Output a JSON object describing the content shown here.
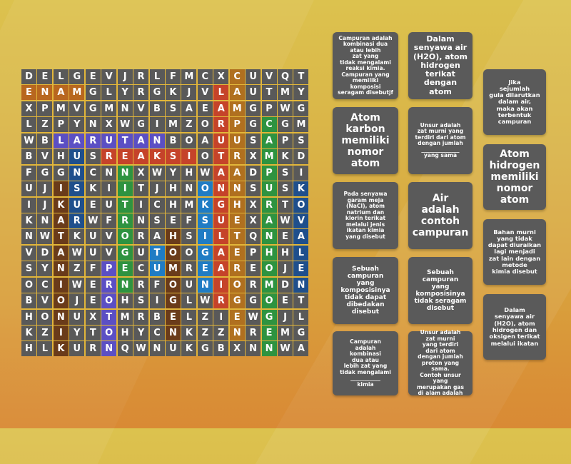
{
  "game": {
    "type": "wordsearch",
    "grid": [
      [
        "D",
        "E",
        "L",
        "G",
        "E",
        "V",
        "J",
        "R",
        "L",
        "F",
        "M",
        "C",
        "X",
        "C",
        "U",
        "V",
        "Q",
        "T"
      ],
      [
        "E",
        "N",
        "A",
        "M",
        "G",
        "L",
        "Y",
        "R",
        "G",
        "K",
        "J",
        "V",
        "L",
        "A",
        "U",
        "T",
        "M",
        "Y"
      ],
      [
        "X",
        "P",
        "M",
        "V",
        "G",
        "M",
        "N",
        "V",
        "B",
        "S",
        "A",
        "E",
        "A",
        "M",
        "G",
        "P",
        "W",
        "G"
      ],
      [
        "L",
        "Z",
        "P",
        "Y",
        "N",
        "X",
        "W",
        "G",
        "I",
        "M",
        "Z",
        "O",
        "R",
        "P",
        "G",
        "C",
        "G",
        "M"
      ],
      [
        "W",
        "B",
        "L",
        "A",
        "R",
        "U",
        "T",
        "A",
        "N",
        "B",
        "O",
        "A",
        "U",
        "U",
        "S",
        "A",
        "P",
        "S"
      ],
      [
        "B",
        "V",
        "H",
        "U",
        "S",
        "R",
        "E",
        "A",
        "K",
        "S",
        "I",
        "O",
        "T",
        "R",
        "X",
        "M",
        "K",
        "D"
      ],
      [
        "F",
        "G",
        "G",
        "N",
        "C",
        "N",
        "N",
        "X",
        "W",
        "Y",
        "H",
        "W",
        "A",
        "A",
        "D",
        "P",
        "S",
        "I"
      ],
      [
        "U",
        "J",
        "I",
        "S",
        "K",
        "I",
        "I",
        "T",
        "J",
        "H",
        "N",
        "O",
        "N",
        "N",
        "S",
        "U",
        "S",
        "K"
      ],
      [
        "I",
        "J",
        "K",
        "U",
        "E",
        "U",
        "T",
        "I",
        "C",
        "H",
        "M",
        "K",
        "G",
        "H",
        "X",
        "R",
        "T",
        "O"
      ],
      [
        "K",
        "N",
        "A",
        "R",
        "W",
        "F",
        "R",
        "N",
        "S",
        "E",
        "F",
        "S",
        "U",
        "E",
        "X",
        "A",
        "W",
        "V"
      ],
      [
        "N",
        "W",
        "T",
        "K",
        "U",
        "V",
        "O",
        "R",
        "A",
        "H",
        "S",
        "I",
        "L",
        "T",
        "Q",
        "N",
        "E",
        "A"
      ],
      [
        "V",
        "D",
        "A",
        "W",
        "U",
        "V",
        "G",
        "U",
        "T",
        "O",
        "O",
        "G",
        "A",
        "E",
        "P",
        "H",
        "H",
        "L"
      ],
      [
        "S",
        "Y",
        "N",
        "Z",
        "F",
        "P",
        "E",
        "C",
        "U",
        "M",
        "R",
        "E",
        "A",
        "R",
        "E",
        "O",
        "J",
        "E"
      ],
      [
        "O",
        "C",
        "I",
        "W",
        "E",
        "R",
        "N",
        "R",
        "F",
        "O",
        "U",
        "N",
        "I",
        "O",
        "R",
        "M",
        "D",
        "N"
      ],
      [
        "B",
        "V",
        "O",
        "J",
        "E",
        "O",
        "H",
        "S",
        "I",
        "G",
        "L",
        "W",
        "R",
        "G",
        "G",
        "O",
        "E",
        "T"
      ],
      [
        "H",
        "O",
        "N",
        "U",
        "X",
        "T",
        "M",
        "R",
        "B",
        "E",
        "L",
        "Z",
        "I",
        "E",
        "W",
        "G",
        "J",
        "L"
      ],
      [
        "K",
        "Z",
        "I",
        "Y",
        "T",
        "O",
        "H",
        "Y",
        "C",
        "N",
        "K",
        "Z",
        "Z",
        "N",
        "R",
        "E",
        "M",
        "G"
      ],
      [
        "H",
        "L",
        "K",
        "U",
        "R",
        "N",
        "Q",
        "W",
        "N",
        "U",
        "K",
        "G",
        "B",
        "X",
        "N",
        "N",
        "W",
        "A"
      ]
    ],
    "found_words": [
      {
        "word": "ENAM",
        "color": "#b8671f"
      },
      {
        "word": "LARUTAN",
        "color": "#5b4fc4"
      },
      {
        "word": "UNSUR",
        "color": "#1f4f8c"
      },
      {
        "word": "REAKSI",
        "color": "#c5432a"
      },
      {
        "word": "CAMPURAN",
        "color": "#2e9340"
      },
      {
        "word": "IKATAN IONIK",
        "color": "#6a3b1a"
      },
      {
        "word": "NITROGEN",
        "color": "#2e9340"
      },
      {
        "word": "PROTON",
        "color": "#5b4fc4"
      },
      {
        "word": "OKSIGEN",
        "color": "#1f7cc4"
      },
      {
        "word": "KOVALEN",
        "color": "#1f4f8c"
      },
      {
        "word": "HOMOGEN",
        "color": "#2e9340"
      },
      {
        "word": "HETEROGEN",
        "color": "#b0701f"
      }
    ]
  },
  "clues": [
    {
      "id": "c1",
      "text": "Campuran adalah\nkombinasi dua\natau lebih\nzat yang\ntidak mengalami\nreaksi kimia.\nCampuran yang\nmemiliki komposisi\nseragam disebutjf"
    },
    {
      "id": "c2",
      "text": "Dalam\nsenyawa air\n(H2O), atom\nhidrogen\nterikat\ndengan atom"
    },
    {
      "id": "c3",
      "text": "Jika\nsejumlah\ngula dilarutkan\ndalam air,\nmaka akan\nterbentuk\ncampuran"
    },
    {
      "id": "c4",
      "text": "Atom\nkarbon\nmemiliki\nnomor\natom"
    },
    {
      "id": "c5",
      "text": "Unsur adalah\nzat murni yang\nterdiri dari atom\ndengan jumlah\n______________\nyang sama"
    },
    {
      "id": "c6",
      "text": "Atom\nhidrogen\nmemiliki\nnomor\natom"
    },
    {
      "id": "c7",
      "text": "Pada senyawa\ngaram meja\n(NaCl), atom\nnatrium dan\nklorin terikat\nmelalui jenis\nikatan kimia\nyang disebut"
    },
    {
      "id": "c8",
      "text": "Air\nadalah\ncontoh\ncampuran"
    },
    {
      "id": "c9",
      "text": "Bahan murni\nyang tidak\ndapat diuraikan\nlagi menjadi\nzat lain dengan\nmetode\nkimia disebut"
    },
    {
      "id": "c10",
      "text": "Sebuah\ncampuran\nyang\nkomposisinya\ntidak dapat\ndibedakan\ndisebut"
    },
    {
      "id": "c11",
      "text": "Sebuah\ncampuran\nyang\nkomposisinya\ntidak seragam\ndisebut"
    },
    {
      "id": "c12",
      "text": "Dalam\nsenyawa air\n(H2O), atom\nhidrogen dan\noksigen terikat\nmelalui ikatan"
    },
    {
      "id": "c13",
      "text": "Campuran\nadalah\nkombinasi\ndua atau\nlebih zat yang\ntidak mengalami\n___________\nkimia"
    },
    {
      "id": "c14",
      "text": "Unsur adalah\nzat murni\nyang terdiri\ndari atom\ndengan jumlah\nproton yang sama.\nContoh unsur yang\nmerupakan gas\ndi alam adalah"
    }
  ],
  "colors": {
    "cell_default": "#595959",
    "grid_lines": "#e2b63a",
    "card_bg": "#5a5a5a"
  }
}
